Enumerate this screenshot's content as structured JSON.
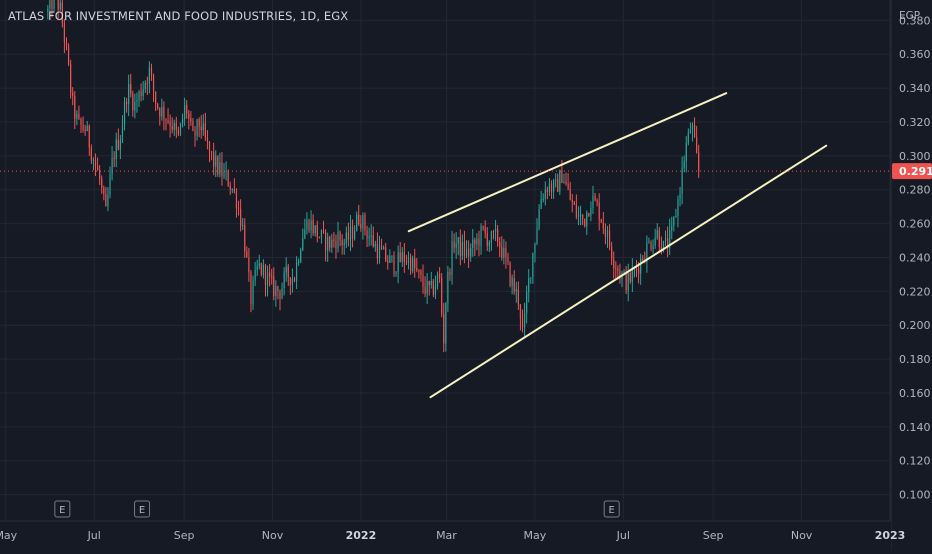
{
  "chart_title": "ATLAS FOR INVESTMENT AND FOOD INDUSTRIES, 1D, EGX",
  "colors": {
    "background": "#161a25",
    "grid": "#232733",
    "up": "#26a69a",
    "down": "#ef5350",
    "trendline": "#f6f2c0",
    "last_price_line": "#ef5350",
    "axis_text": "#b2b5be"
  },
  "chart_data": {
    "type": "candlestick",
    "title": "ATLAS FOR INVESTMENT AND FOOD INDUSTRIES, 1D, EGX",
    "currency": "EGP",
    "y_ticks": [
      "0.380",
      "0.360",
      "0.340",
      "0.320",
      "0.300",
      "0.280",
      "0.260",
      "0.240",
      "0.220",
      "0.200",
      "0.180",
      "0.160",
      "0.140",
      "0.120",
      "0.100"
    ],
    "ylim": [
      0.085,
      0.392
    ],
    "x_ticks": [
      {
        "label": "May",
        "t": 0
      },
      {
        "label": "Jul",
        "t": 61
      },
      {
        "label": "Sep",
        "t": 123
      },
      {
        "label": "Nov",
        "t": 184
      },
      {
        "label": "2022",
        "t": 245,
        "year": true
      },
      {
        "label": "Mar",
        "t": 304
      },
      {
        "label": "May",
        "t": 365
      },
      {
        "label": "Jul",
        "t": 426
      },
      {
        "label": "Sep",
        "t": 488
      },
      {
        "label": "Nov",
        "t": 549
      },
      {
        "label": "2023",
        "t": 610,
        "year": true
      }
    ],
    "xlim": [
      -4,
      610
    ],
    "last_price": "0.291",
    "last_price_value": 0.291,
    "events": [
      {
        "label": "E",
        "t": 39
      },
      {
        "label": "E",
        "t": 94
      },
      {
        "label": "E",
        "t": 418
      }
    ],
    "trendlines": [
      {
        "t1": 278,
        "p1": 0.2555,
        "t2": 497,
        "p2": 0.337
      },
      {
        "t1": 293,
        "p1": 0.1575,
        "t2": 566,
        "p2": 0.306
      }
    ],
    "price_path": [
      {
        "t": 29,
        "p": 0.385
      },
      {
        "t": 34,
        "p": 0.395
      },
      {
        "t": 38,
        "p": 0.385
      },
      {
        "t": 42,
        "p": 0.36
      },
      {
        "t": 46,
        "p": 0.33
      },
      {
        "t": 50,
        "p": 0.318
      },
      {
        "t": 55,
        "p": 0.316
      },
      {
        "t": 60,
        "p": 0.3
      },
      {
        "t": 65,
        "p": 0.285
      },
      {
        "t": 69,
        "p": 0.265
      },
      {
        "t": 74,
        "p": 0.3
      },
      {
        "t": 79,
        "p": 0.312
      },
      {
        "t": 84,
        "p": 0.34
      },
      {
        "t": 89,
        "p": 0.33
      },
      {
        "t": 94,
        "p": 0.34
      },
      {
        "t": 99,
        "p": 0.35
      },
      {
        "t": 104,
        "p": 0.33
      },
      {
        "t": 109,
        "p": 0.325
      },
      {
        "t": 114,
        "p": 0.32
      },
      {
        "t": 119,
        "p": 0.31
      },
      {
        "t": 124,
        "p": 0.33
      },
      {
        "t": 129,
        "p": 0.31
      },
      {
        "t": 134,
        "p": 0.32
      },
      {
        "t": 139,
        "p": 0.305
      },
      {
        "t": 144,
        "p": 0.295
      },
      {
        "t": 149,
        "p": 0.29
      },
      {
        "t": 154,
        "p": 0.285
      },
      {
        "t": 159,
        "p": 0.275
      },
      {
        "t": 164,
        "p": 0.255
      },
      {
        "t": 169,
        "p": 0.215
      },
      {
        "t": 174,
        "p": 0.235
      },
      {
        "t": 179,
        "p": 0.23
      },
      {
        "t": 184,
        "p": 0.222
      },
      {
        "t": 189,
        "p": 0.22
      },
      {
        "t": 194,
        "p": 0.23
      },
      {
        "t": 199,
        "p": 0.228
      },
      {
        "t": 204,
        "p": 0.252
      },
      {
        "t": 209,
        "p": 0.262
      },
      {
        "t": 214,
        "p": 0.255
      },
      {
        "t": 219,
        "p": 0.25
      },
      {
        "t": 224,
        "p": 0.248
      },
      {
        "t": 229,
        "p": 0.252
      },
      {
        "t": 234,
        "p": 0.248
      },
      {
        "t": 239,
        "p": 0.255
      },
      {
        "t": 244,
        "p": 0.265
      },
      {
        "t": 249,
        "p": 0.255
      },
      {
        "t": 254,
        "p": 0.248
      },
      {
        "t": 259,
        "p": 0.242
      },
      {
        "t": 264,
        "p": 0.238
      },
      {
        "t": 269,
        "p": 0.236
      },
      {
        "t": 274,
        "p": 0.24
      },
      {
        "t": 279,
        "p": 0.238
      },
      {
        "t": 284,
        "p": 0.23
      },
      {
        "t": 289,
        "p": 0.222
      },
      {
        "t": 294,
        "p": 0.22
      },
      {
        "t": 299,
        "p": 0.23
      },
      {
        "t": 302,
        "p": 0.19
      },
      {
        "t": 304,
        "p": 0.222
      },
      {
        "t": 309,
        "p": 0.25
      },
      {
        "t": 314,
        "p": 0.245
      },
      {
        "t": 319,
        "p": 0.242
      },
      {
        "t": 324,
        "p": 0.248
      },
      {
        "t": 329,
        "p": 0.255
      },
      {
        "t": 334,
        "p": 0.25
      },
      {
        "t": 339,
        "p": 0.252
      },
      {
        "t": 344,
        "p": 0.24
      },
      {
        "t": 349,
        "p": 0.225
      },
      {
        "t": 354,
        "p": 0.215
      },
      {
        "t": 357,
        "p": 0.192
      },
      {
        "t": 359,
        "p": 0.215
      },
      {
        "t": 364,
        "p": 0.245
      },
      {
        "t": 369,
        "p": 0.275
      },
      {
        "t": 374,
        "p": 0.283
      },
      {
        "t": 379,
        "p": 0.28
      },
      {
        "t": 384,
        "p": 0.29
      },
      {
        "t": 389,
        "p": 0.275
      },
      {
        "t": 394,
        "p": 0.265
      },
      {
        "t": 399,
        "p": 0.262
      },
      {
        "t": 404,
        "p": 0.275
      },
      {
        "t": 409,
        "p": 0.268
      },
      {
        "t": 414,
        "p": 0.255
      },
      {
        "t": 419,
        "p": 0.24
      },
      {
        "t": 424,
        "p": 0.23
      },
      {
        "t": 429,
        "p": 0.225
      },
      {
        "t": 434,
        "p": 0.232
      },
      {
        "t": 439,
        "p": 0.24
      },
      {
        "t": 444,
        "p": 0.248
      },
      {
        "t": 449,
        "p": 0.255
      },
      {
        "t": 454,
        "p": 0.245
      },
      {
        "t": 459,
        "p": 0.252
      },
      {
        "t": 464,
        "p": 0.275
      },
      {
        "t": 469,
        "p": 0.305
      },
      {
        "t": 471,
        "p": 0.31
      },
      {
        "t": 473,
        "p": 0.32
      },
      {
        "t": 476,
        "p": 0.3
      },
      {
        "t": 479,
        "p": 0.291
      }
    ]
  }
}
